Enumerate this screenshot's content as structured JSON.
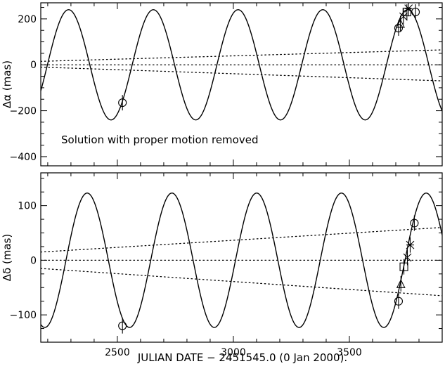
{
  "figure": {
    "xlabel": "JULIAN DATE − 2451545.0 (0 Jan 2000).",
    "xlim": [
      2170,
      3900
    ],
    "xticks": [
      2500,
      3000,
      3500
    ],
    "x_tick_labels": [
      "2500",
      "3000",
      "3500"
    ]
  },
  "chart_data": [
    {
      "type": "line",
      "panel": "top",
      "ylabel": "Δα (mas)",
      "annotation": "Solution with proper motion removed",
      "ylim": [
        -440,
        270
      ],
      "yticks": [
        200,
        0,
        -200,
        -400
      ],
      "y_tick_labels": [
        "200",
        "0",
        "−200",
        "−400"
      ],
      "orbit_model": {
        "amplitude": 240,
        "period_days": 365.25,
        "peak_x": 2290
      },
      "dotted_lines": [
        {
          "x": [
            2170,
            3900
          ],
          "y": [
            15,
            65
          ]
        },
        {
          "x": [
            2170,
            3900
          ],
          "y": [
            0,
            0
          ]
        },
        {
          "x": [
            2170,
            3900
          ],
          "y": [
            -10,
            -70
          ]
        }
      ],
      "observations": [
        {
          "x": 2522,
          "y": -165,
          "marker": "circle"
        },
        {
          "x": 3712,
          "y": 160,
          "marker": "circle"
        },
        {
          "x": 3720,
          "y": 180,
          "marker": "triangle"
        },
        {
          "x": 3733,
          "y": 210,
          "marker": "cross"
        },
        {
          "x": 3748,
          "y": 230,
          "marker": "square"
        },
        {
          "x": 3755,
          "y": 245,
          "marker": "star"
        },
        {
          "x": 3785,
          "y": 230,
          "marker": "circle"
        }
      ]
    },
    {
      "type": "line",
      "panel": "bottom",
      "ylabel": "Δδ (mas)",
      "ylim": [
        -150,
        160
      ],
      "yticks": [
        100,
        0,
        -100
      ],
      "y_tick_labels": [
        "100",
        "0",
        "−100"
      ],
      "orbit_model": {
        "amplitude": 123,
        "period_days": 365.25,
        "peak_x": 2370
      },
      "dotted_lines": [
        {
          "x": [
            2170,
            3900
          ],
          "y": [
            15,
            60
          ]
        },
        {
          "x": [
            2170,
            3900
          ],
          "y": [
            0,
            0
          ]
        },
        {
          "x": [
            2170,
            3900
          ],
          "y": [
            -15,
            -65
          ]
        }
      ],
      "observations": [
        {
          "x": 2522,
          "y": -120,
          "marker": "circle"
        },
        {
          "x": 3712,
          "y": -75,
          "marker": "circle"
        },
        {
          "x": 3722,
          "y": -43,
          "marker": "triangle"
        },
        {
          "x": 3735,
          "y": -12,
          "marker": "square"
        },
        {
          "x": 3750,
          "y": 5,
          "marker": "cross"
        },
        {
          "x": 3762,
          "y": 28,
          "marker": "star"
        },
        {
          "x": 3780,
          "y": 68,
          "marker": "circle"
        }
      ]
    }
  ]
}
